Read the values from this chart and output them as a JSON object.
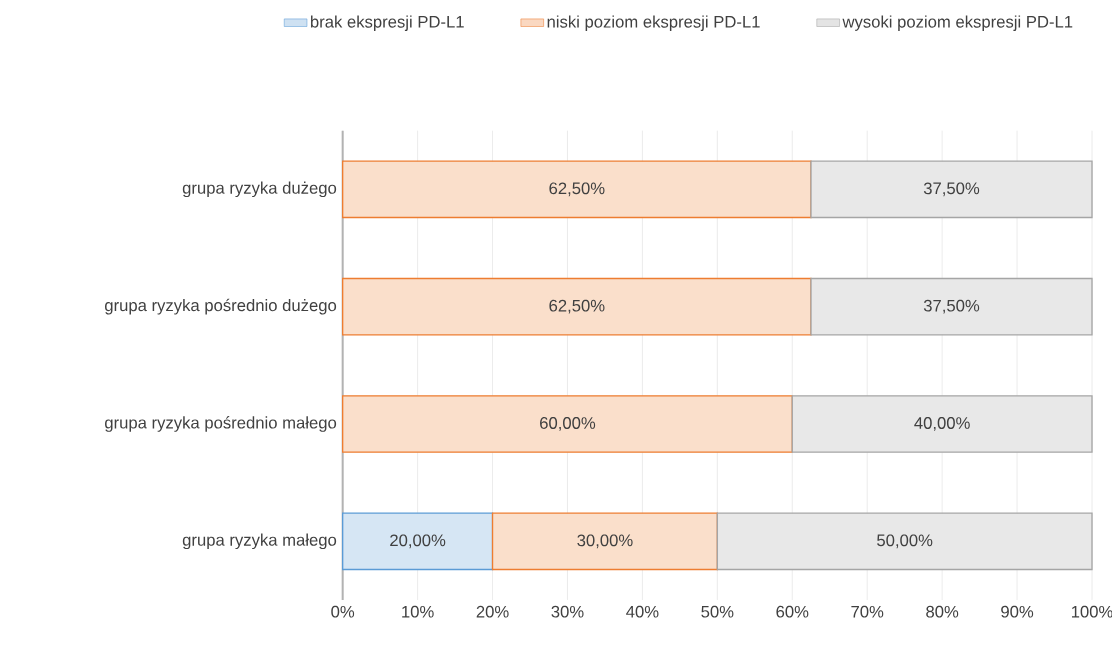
{
  "chart_data": {
    "type": "bar",
    "orientation": "horizontal",
    "stacked": true,
    "legend": "top",
    "grid": "x",
    "categories": [
      "grupa ryzyka dużego",
      "grupa ryzyka pośrednio dużego",
      "grupa ryzyka pośrednio małego",
      "grupa ryzyka małego"
    ],
    "series": [
      {
        "name": "brak ekspresji PD-L1",
        "color": "#5b9bd5",
        "values": [
          null,
          null,
          null,
          20
        ],
        "value_labels": [
          null,
          null,
          null,
          "20,00%"
        ]
      },
      {
        "name": "niski poziom ekspresji PD-L1",
        "color": "#ed7d31",
        "values": [
          62.5,
          62.5,
          60,
          30
        ],
        "value_labels": [
          "62,50%",
          "62,50%",
          "60,00%",
          "30,00%"
        ]
      },
      {
        "name": "wysoki poziom ekspresji PD-L1",
        "color": "#a5a5a5",
        "values": [
          37.5,
          37.5,
          40,
          50
        ],
        "value_labels": [
          "37,50%",
          "37,50%",
          "40,00%",
          "50,00%"
        ]
      }
    ],
    "xlim": [
      0,
      100
    ],
    "xticks": [
      {
        "value": 0,
        "label": "0%"
      },
      {
        "value": 10,
        "label": "10%"
      },
      {
        "value": 20,
        "label": "20%"
      },
      {
        "value": 30,
        "label": "30%"
      },
      {
        "value": 40,
        "label": "40%"
      },
      {
        "value": 50,
        "label": "50%"
      },
      {
        "value": 60,
        "label": "60%"
      },
      {
        "value": 70,
        "label": "70%"
      },
      {
        "value": 80,
        "label": "80%"
      },
      {
        "value": 90,
        "label": "90%"
      },
      {
        "value": 100,
        "label": "100%"
      }
    ]
  }
}
